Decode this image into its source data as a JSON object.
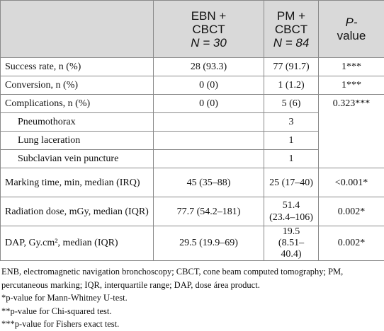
{
  "table": {
    "header": {
      "col1": [
        "EBN +",
        "CBCT",
        "N = 30"
      ],
      "col2": [
        "PM +",
        "CBCT",
        "N = 84"
      ],
      "col3": [
        "P-",
        "value"
      ]
    },
    "rows": [
      {
        "label": "Success rate, n (%)",
        "ebn": "28 (93.3)",
        "pm": "77 (91.7)",
        "p": "1***"
      },
      {
        "label": "Conversion, n (%)",
        "ebn": "0 (0)",
        "pm": "1 (1.2)",
        "p": "1***"
      },
      {
        "label": "Complications, n (%)",
        "ebn": "0 (0)",
        "pm": "5 (6)",
        "p": "0.323***"
      },
      {
        "label": "Pneumothorax",
        "pm": "3"
      },
      {
        "label": "Lung laceration",
        "pm": "1"
      },
      {
        "label": "Subclavian vein puncture",
        "pm": "1"
      },
      {
        "label": "Marking time, min, median (IRQ)",
        "ebn": "45 (35–88)",
        "pm": "25 (17–40)",
        "p": "<0.001*"
      },
      {
        "label": "Radiation dose, mGy, median (IQR)",
        "ebn": "77.7 (54.2–181)",
        "pm": "51.4 (23.4–106)",
        "p": "0.002*"
      },
      {
        "label": "DAP, Gy.cm², median (IQR)",
        "ebn": "29.5 (19.9–69)",
        "pm": "19.5 (8.51–40.4)",
        "p": "0.002*"
      }
    ]
  },
  "footnotes": [
    "ENB, electromagnetic navigation bronchoscopy; CBCT, cone beam computed tomography; PM, percutaneous marking; IQR, interquartile range; DAP, dose área product.",
    "*p-value for Mann-Whitney U-test.",
    "**p-value for Chi-squared test.",
    "***p-value for Fishers exact test."
  ]
}
